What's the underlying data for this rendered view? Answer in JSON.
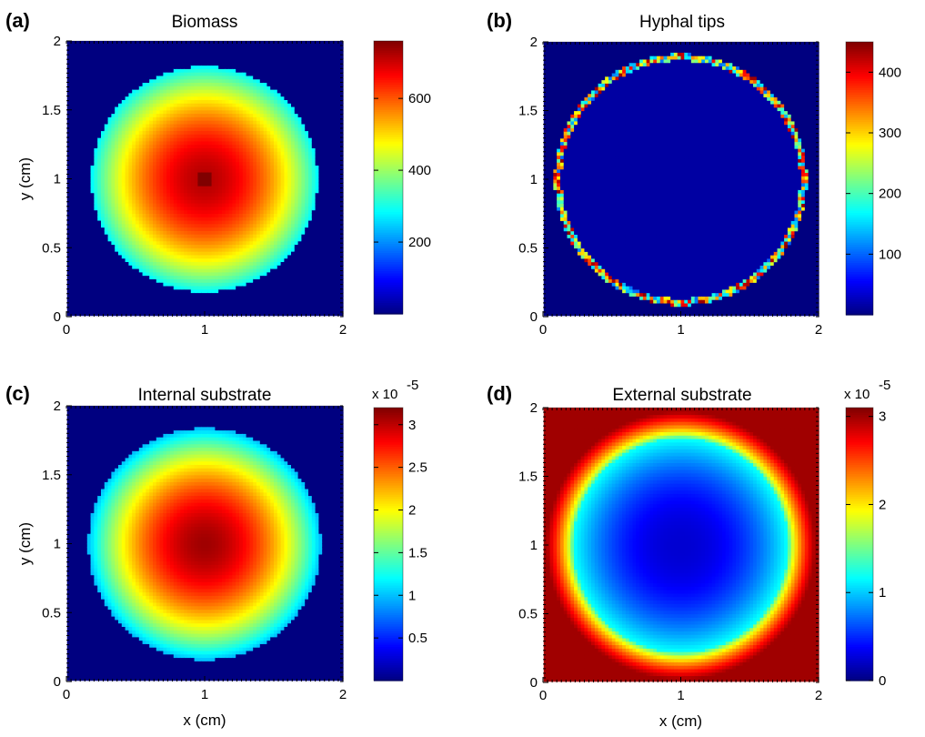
{
  "chart_data": [
    {
      "type": "heatmap",
      "panel_label": "(a)",
      "title": "Biomass",
      "xlabel": "",
      "ylabel": "y (cm)",
      "xlim": [
        0,
        2
      ],
      "ylim": [
        0,
        2
      ],
      "x_ticks": [
        "0",
        "1",
        "2"
      ],
      "y_ticks": [
        "0",
        "0.5",
        "1",
        "1.5",
        "2"
      ],
      "colorbar": {
        "min": 0,
        "max": 760,
        "ticks": [
          "200",
          "400",
          "600"
        ],
        "ticks_values": [
          200,
          400,
          600
        ],
        "exponent": ""
      },
      "field": {
        "pattern": "disk",
        "center": [
          1,
          1
        ],
        "radius_cm": 0.82,
        "background": 0,
        "center_value": 720,
        "edge_value": 280,
        "peak_value": 760
      }
    },
    {
      "type": "heatmap",
      "panel_label": "(b)",
      "title": "Hyphal tips",
      "xlabel": "",
      "ylabel": "",
      "xlim": [
        0,
        2
      ],
      "ylim": [
        0,
        2
      ],
      "x_ticks": [
        "0",
        "1",
        "2"
      ],
      "y_ticks": [
        "0",
        "0.5",
        "1",
        "1.5",
        "2"
      ],
      "colorbar": {
        "min": 0,
        "max": 450,
        "ticks": [
          "100",
          "200",
          "300",
          "400"
        ],
        "ticks_values": [
          100,
          200,
          300,
          400
        ],
        "exponent": ""
      },
      "field": {
        "pattern": "ring",
        "center": [
          1,
          1
        ],
        "radius_cm": 0.89,
        "background": 0,
        "interior_value": 15,
        "ring_value": 250,
        "ring_max": 450
      }
    },
    {
      "type": "heatmap",
      "panel_label": "(c)",
      "title": "Internal substrate",
      "xlabel": "x (cm)",
      "ylabel": "y (cm)",
      "xlim": [
        0,
        2
      ],
      "ylim": [
        0,
        2
      ],
      "x_ticks": [
        "0",
        "1",
        "2"
      ],
      "y_ticks": [
        "0",
        "0.5",
        "1",
        "1.5",
        "2"
      ],
      "colorbar": {
        "min": 0,
        "max": 3.2,
        "ticks": [
          "0.5",
          "1",
          "1.5",
          "2",
          "2.5",
          "3"
        ],
        "ticks_values": [
          0.5,
          1,
          1.5,
          2,
          2.5,
          3
        ],
        "exponent": "x 10",
        "exponent_power": "-5"
      },
      "field": {
        "pattern": "disk",
        "center": [
          1,
          1
        ],
        "radius_cm": 0.84,
        "background": 0,
        "center_value": 3.1,
        "edge_value": 1.0
      }
    },
    {
      "type": "heatmap",
      "panel_label": "(d)",
      "title": "External substrate",
      "xlabel": "x (cm)",
      "ylabel": "",
      "xlim": [
        0,
        2
      ],
      "ylim": [
        0,
        2
      ],
      "x_ticks": [
        "0",
        "1",
        "2"
      ],
      "y_ticks": [
        "0",
        "0.5",
        "1",
        "1.5",
        "2"
      ],
      "colorbar": {
        "min": 0,
        "max": 3.1,
        "ticks": [
          "0",
          "1",
          "2",
          "3"
        ],
        "ticks_values": [
          0,
          1,
          2,
          3
        ],
        "exponent": "x 10",
        "exponent_power": "-5"
      },
      "field": {
        "pattern": "depletion",
        "center": [
          1,
          1
        ],
        "radius_cm": 0.78,
        "center_value": 0.25,
        "ring_value": 1.2,
        "outer_value": 3.0
      }
    }
  ]
}
